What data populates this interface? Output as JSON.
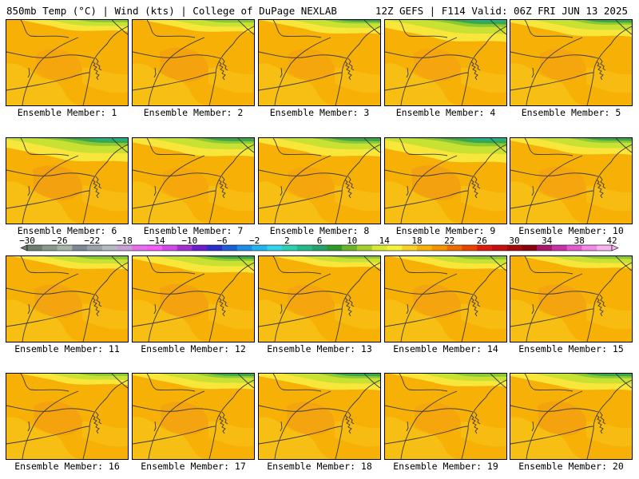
{
  "header": {
    "left": "850mb Temp (°C) | Wind (kts) | College of DuPage NEXLAB",
    "right": "12Z GEFS | F114 Valid: 06Z FRI JUN 13 2025"
  },
  "members": [
    {
      "label": "Ensemble Member: 1",
      "warm": 0.3,
      "cold": 0.2
    },
    {
      "label": "Ensemble Member: 2",
      "warm": 0.6,
      "cold": 0.25
    },
    {
      "label": "Ensemble Member: 3",
      "warm": 0.3,
      "cold": 0.35
    },
    {
      "label": "Ensemble Member: 4",
      "warm": 0.4,
      "cold": 0.8
    },
    {
      "label": "Ensemble Member: 5",
      "warm": 0.3,
      "cold": 0.5
    },
    {
      "label": "Ensemble Member: 6",
      "warm": 0.7,
      "cold": 0.9
    },
    {
      "label": "Ensemble Member: 7",
      "warm": 0.2,
      "cold": 0.6
    },
    {
      "label": "Ensemble Member: 8",
      "warm": 0.3,
      "cold": 0.6
    },
    {
      "label": "Ensemble Member: 9",
      "warm": 0.7,
      "cold": 0.95
    },
    {
      "label": "Ensemble Member: 10",
      "warm": 0.4,
      "cold": 0.5
    },
    {
      "label": "Ensemble Member: 11",
      "warm": 0.5,
      "cold": 0.3
    },
    {
      "label": "Ensemble Member: 12",
      "warm": 0.6,
      "cold": 0.5
    },
    {
      "label": "Ensemble Member: 13",
      "warm": 0.4,
      "cold": 0.2
    },
    {
      "label": "Ensemble Member: 14",
      "warm": 0.5,
      "cold": 0.3
    },
    {
      "label": "Ensemble Member: 15",
      "warm": 0.5,
      "cold": 0.25
    },
    {
      "label": "Ensemble Member: 16",
      "warm": 0.6,
      "cold": 0.2
    },
    {
      "label": "Ensemble Member: 17",
      "warm": 0.5,
      "cold": 0.45
    },
    {
      "label": "Ensemble Member: 18",
      "warm": 0.5,
      "cold": 0.5
    },
    {
      "label": "Ensemble Member: 19",
      "warm": 0.3,
      "cold": 0.3
    },
    {
      "label": "Ensemble Member: 20",
      "warm": 0.6,
      "cold": 0.5
    }
  ],
  "colorbar": {
    "ticks": [
      "−30",
      "−26",
      "−22",
      "−18",
      "−14",
      "−10",
      "−6",
      "−2",
      "2",
      "6",
      "10",
      "14",
      "18",
      "22",
      "26",
      "30",
      "34",
      "38",
      "42"
    ],
    "colors": [
      "#6e7e6e",
      "#8a9a8a",
      "#a7b5a7",
      "#7d8a93",
      "#9aa3a9",
      "#b3bbc4",
      "#c7a0d6",
      "#e470f0",
      "#f45ef6",
      "#d24ae6",
      "#a530d0",
      "#6a1fc8",
      "#2b2fc9",
      "#1e5fd8",
      "#1f8fe6",
      "#23b5ec",
      "#33d4ea",
      "#2ed0b0",
      "#26b98a",
      "#24a36a",
      "#2f9a2c",
      "#6cb42a",
      "#a5d02b",
      "#d8ea32",
      "#f6f43a",
      "#f9d227",
      "#f6b10b",
      "#f39500",
      "#ee6d00",
      "#e84400",
      "#dc1c0a",
      "#c4100e",
      "#a5090c",
      "#8a0410",
      "#a8156a",
      "#c632a8",
      "#e05ad0",
      "#f08ae4",
      "#f8b6ee"
    ]
  },
  "legend_colors": {
    "base": "#f7b106",
    "warm": "#f39c12",
    "light": "#f8c820",
    "yellow": "#f8e63a",
    "green1": "#c9e132",
    "green2": "#8ac934",
    "green3": "#3aa84a",
    "teal": "#1fb389",
    "line": "#3a3a3a"
  }
}
